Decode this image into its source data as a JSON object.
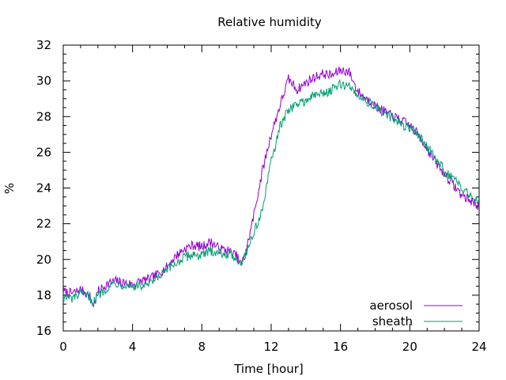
{
  "chart_data": {
    "type": "line",
    "title": "Relative humidity",
    "xlabel": "Time [hour]",
    "ylabel": "%",
    "xlim": [
      0,
      24
    ],
    "ylim": [
      16,
      32
    ],
    "xticks": [
      0,
      4,
      8,
      12,
      16,
      20,
      24
    ],
    "yticks": [
      16,
      18,
      20,
      22,
      24,
      26,
      28,
      30,
      32
    ],
    "grid": false,
    "legend_position": "bottom-right",
    "series": [
      {
        "name": "aerosol",
        "color": "#9400d3",
        "x": [
          0,
          0.5,
          1,
          1.5,
          1.75,
          2,
          2.5,
          3,
          3.5,
          4,
          4.5,
          5,
          5.5,
          6,
          6.5,
          7,
          7.5,
          8,
          8.5,
          9,
          9.5,
          10,
          10.25,
          10.5,
          11,
          11.5,
          12,
          12.5,
          13,
          13.5,
          14,
          14.5,
          15,
          15.5,
          16,
          16.5,
          17,
          17.5,
          18,
          18.5,
          19,
          19.5,
          20,
          20.5,
          21,
          21.5,
          22,
          22.5,
          23,
          23.5,
          24
        ],
        "y": [
          18.2,
          18.1,
          18.3,
          18.0,
          17.4,
          18.2,
          18.6,
          18.8,
          18.7,
          18.6,
          18.8,
          18.9,
          19.2,
          19.6,
          20.2,
          20.6,
          20.8,
          20.7,
          21.0,
          20.6,
          20.5,
          20.2,
          19.7,
          20.2,
          22.5,
          25.0,
          27.0,
          28.6,
          30.1,
          29.5,
          29.9,
          30.2,
          30.4,
          30.3,
          30.6,
          30.5,
          29.4,
          29.0,
          28.6,
          28.3,
          28.0,
          27.8,
          27.5,
          27.0,
          26.2,
          25.4,
          24.8,
          24.2,
          23.6,
          23.3,
          23.0
        ]
      },
      {
        "name": "sheath",
        "color": "#009e73",
        "x": [
          0,
          0.5,
          1,
          1.5,
          1.75,
          2,
          2.5,
          3,
          3.5,
          4,
          4.5,
          5,
          5.5,
          6,
          6.5,
          7,
          7.5,
          8,
          8.5,
          9,
          9.5,
          10,
          10.25,
          10.5,
          11,
          11.5,
          12,
          12.5,
          13,
          13.5,
          14,
          14.5,
          15,
          15.5,
          16,
          16.5,
          17,
          17.5,
          18,
          18.5,
          19,
          19.5,
          20,
          20.5,
          21,
          21.5,
          22,
          22.5,
          23,
          23.5,
          24
        ],
        "y": [
          17.9,
          17.8,
          18.1,
          17.9,
          17.6,
          18.0,
          18.4,
          18.7,
          18.6,
          18.5,
          18.5,
          18.6,
          19.0,
          19.4,
          19.8,
          20.1,
          20.3,
          20.2,
          20.5,
          20.4,
          20.3,
          20.1,
          19.8,
          20.3,
          21.5,
          22.8,
          25.5,
          27.4,
          28.4,
          28.7,
          28.9,
          29.2,
          29.3,
          29.5,
          29.8,
          29.7,
          29.2,
          28.9,
          28.5,
          28.2,
          27.9,
          27.6,
          27.3,
          27.0,
          26.3,
          25.6,
          25.0,
          24.5,
          24.0,
          23.6,
          23.3
        ]
      }
    ]
  }
}
